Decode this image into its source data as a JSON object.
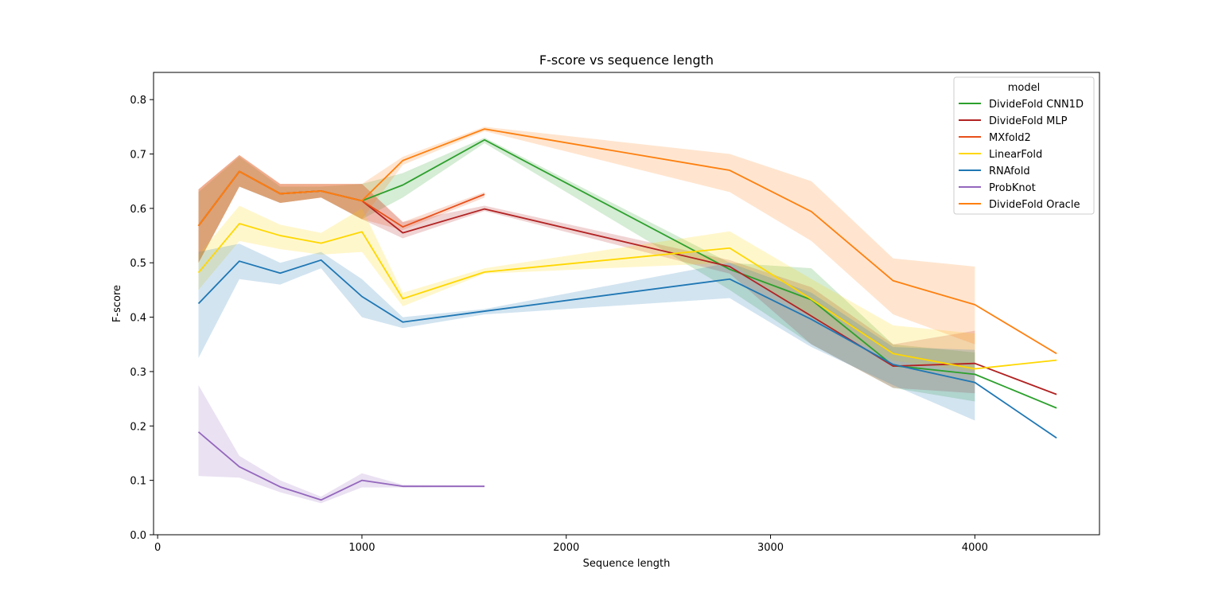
{
  "chart_data": {
    "type": "line",
    "title": "F-score vs sequence length",
    "xlabel": "Sequence length",
    "ylabel": "F-score",
    "xlim": [
      -20,
      4610
    ],
    "ylim": [
      0,
      0.85
    ],
    "xticks": [
      0,
      1000,
      2000,
      3000,
      4000
    ],
    "yticks": [
      0.0,
      0.1,
      0.2,
      0.3,
      0.4,
      0.5,
      0.6,
      0.7,
      0.8
    ],
    "grid": false,
    "legend": {
      "title": "model",
      "placement": "top-right"
    },
    "series": [
      {
        "name": "DivideFold CNN1D",
        "color": "#2ca02c",
        "x": [
          200,
          400,
          600,
          800,
          1000,
          1200,
          1600,
          2800,
          3200,
          3600,
          4000,
          4400
        ],
        "y": [
          0.568,
          0.668,
          0.627,
          0.632,
          0.614,
          0.643,
          0.726,
          0.488,
          0.432,
          0.311,
          0.295,
          0.233
        ],
        "lower": [
          0.5,
          0.64,
          0.61,
          0.62,
          0.58,
          0.62,
          0.72,
          0.45,
          0.35,
          0.27,
          0.245,
          null
        ],
        "upper": [
          0.63,
          0.695,
          0.64,
          0.64,
          0.645,
          0.665,
          0.73,
          0.5,
          0.49,
          0.35,
          0.335,
          null
        ]
      },
      {
        "name": "DivideFold MLP",
        "color": "#b22222",
        "x": [
          200,
          400,
          600,
          800,
          1000,
          1200,
          1600,
          2800,
          3200,
          3600,
          4000,
          4400
        ],
        "y": [
          0.568,
          0.668,
          0.627,
          0.632,
          0.614,
          0.555,
          0.599,
          0.493,
          0.402,
          0.31,
          0.315,
          0.258
        ],
        "lower": [
          0.5,
          0.64,
          0.61,
          0.62,
          0.58,
          0.545,
          0.595,
          0.48,
          0.35,
          0.27,
          0.26,
          null
        ],
        "upper": [
          0.635,
          0.698,
          0.645,
          0.645,
          0.645,
          0.575,
          0.605,
          0.505,
          0.455,
          0.35,
          0.375,
          null
        ]
      },
      {
        "name": "MXfold2",
        "color": "#e8501a",
        "x": [
          200,
          400,
          600,
          800,
          1000,
          1200,
          1600
        ],
        "y": [
          0.568,
          0.668,
          0.627,
          0.632,
          0.614,
          0.566,
          0.626
        ],
        "lower": [
          0.5,
          0.64,
          0.61,
          0.62,
          0.58,
          0.56,
          0.62
        ],
        "upper": [
          0.635,
          0.698,
          0.645,
          0.645,
          0.645,
          0.575,
          0.63
        ]
      },
      {
        "name": "LinearFold",
        "color": "#ffd700",
        "x": [
          200,
          400,
          600,
          800,
          1000,
          1200,
          1600,
          2800,
          3200,
          3600,
          4000,
          4400
        ],
        "y": [
          0.482,
          0.572,
          0.55,
          0.536,
          0.557,
          0.434,
          0.483,
          0.527,
          0.433,
          0.333,
          0.305,
          0.321
        ],
        "lower": [
          0.45,
          0.54,
          0.525,
          0.515,
          0.52,
          0.42,
          0.48,
          0.5,
          0.4,
          0.32,
          0.3,
          null
        ],
        "upper": [
          0.515,
          0.605,
          0.57,
          0.555,
          0.6,
          0.445,
          0.49,
          0.558,
          0.47,
          0.385,
          0.37,
          null
        ]
      },
      {
        "name": "RNAfold",
        "color": "#1f77b4",
        "x": [
          200,
          400,
          600,
          800,
          1000,
          1200,
          1600,
          2800,
          3200,
          3600,
          4000,
          4400
        ],
        "y": [
          0.425,
          0.503,
          0.481,
          0.505,
          0.438,
          0.391,
          0.411,
          0.47,
          0.396,
          0.313,
          0.28,
          0.178
        ],
        "lower": [
          0.325,
          0.47,
          0.46,
          0.49,
          0.4,
          0.38,
          0.405,
          0.435,
          0.345,
          0.275,
          0.21,
          null
        ],
        "upper": [
          0.52,
          0.535,
          0.5,
          0.52,
          0.47,
          0.4,
          0.415,
          0.5,
          0.445,
          0.345,
          0.34,
          null
        ]
      },
      {
        "name": "ProbKnot",
        "color": "#9467bd",
        "x": [
          200,
          400,
          600,
          800,
          1000,
          1200,
          1600
        ],
        "y": [
          0.189,
          0.125,
          0.088,
          0.064,
          0.1,
          0.089,
          0.089
        ],
        "lower": [
          0.108,
          0.105,
          0.078,
          0.058,
          0.087,
          0.087,
          0.088
        ],
        "upper": [
          0.275,
          0.145,
          0.1,
          0.07,
          0.113,
          0.092,
          0.091
        ]
      },
      {
        "name": "DivideFold Oracle",
        "color": "#ff7f0e",
        "x": [
          200,
          400,
          600,
          800,
          1000,
          1200,
          1600,
          2800,
          3200,
          3600,
          4000,
          4400
        ],
        "y": [
          0.568,
          0.668,
          0.627,
          0.632,
          0.614,
          0.688,
          0.746,
          0.67,
          0.594,
          0.467,
          0.423,
          0.333
        ],
        "lower": [
          0.5,
          0.64,
          0.61,
          0.62,
          0.58,
          0.68,
          0.742,
          0.63,
          0.54,
          0.405,
          0.35,
          null
        ],
        "upper": [
          0.635,
          0.698,
          0.645,
          0.645,
          0.645,
          0.695,
          0.75,
          0.7,
          0.65,
          0.508,
          0.493,
          null
        ]
      }
    ]
  }
}
